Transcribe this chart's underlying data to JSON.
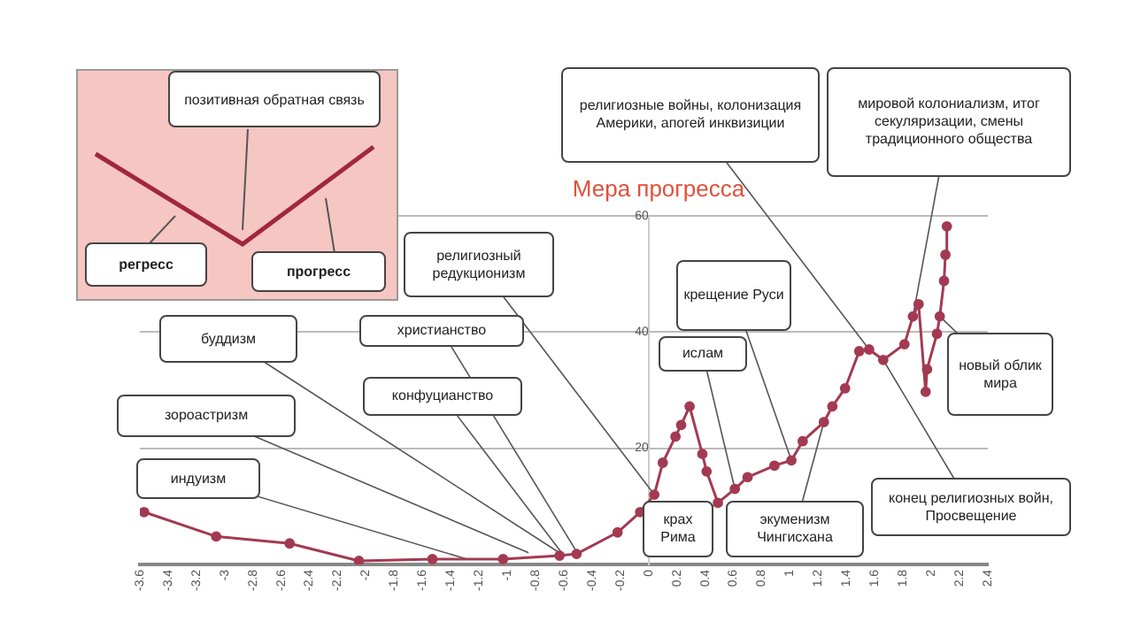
{
  "chart_data": {
    "type": "line",
    "title": "Мера прогресса",
    "x": [
      -3.57,
      -3.06,
      -2.54,
      -2.05,
      -1.53,
      -1.03,
      -0.63,
      -0.51,
      -0.22,
      -0.06,
      0.04,
      0.1,
      0.19,
      0.23,
      0.29,
      0.38,
      0.41,
      0.49,
      0.61,
      0.7,
      0.89,
      1.01,
      1.09,
      1.24,
      1.3,
      1.39,
      1.49,
      1.56,
      1.66,
      1.81,
      1.87,
      1.91,
      1.96,
      1.97,
      2.04,
      2.06,
      2.09,
      2.1,
      2.11
    ],
    "series": [
      {
        "color": "#a33a52",
        "values": [
          9,
          4.8,
          3.6,
          0.6,
          0.9,
          0.9,
          1.5,
          1.8,
          5.5,
          9,
          12,
          17.5,
          22,
          24,
          27.2,
          19,
          16,
          10.6,
          13,
          15,
          17,
          17.9,
          21.2,
          24.5,
          27.2,
          30.3,
          36.7,
          37,
          35.2,
          37.9,
          42.7,
          44.8,
          29.7,
          33.6,
          39.7,
          42.7,
          48.8,
          53.3,
          58.2
        ]
      }
    ],
    "xlim": [
      -3.6,
      2.4
    ],
    "xticks": [
      -3.6,
      -3.4,
      -3.2,
      -3,
      -2.8,
      -2.6,
      -2.4,
      -2.2,
      -2,
      -1.8,
      -1.6,
      -1.4,
      -1.2,
      -1,
      -0.8,
      -0.6,
      -0.4,
      -0.2,
      0,
      0.2,
      0.4,
      0.6,
      0.8,
      1,
      1.2,
      1.4,
      1.6,
      1.8,
      2,
      2.2,
      2.4
    ],
    "ylim": [
      0,
      60
    ],
    "yticks": [
      20,
      40,
      60
    ],
    "grid": "y",
    "marker": "circle",
    "line_style": "solid",
    "legend": false,
    "annotations": [
      "позитивная обратная связь",
      "регресс",
      "прогресс",
      {
        "text": "индуизм",
        "x": -1.3,
        "y": 1
      },
      {
        "text": "зороастризм",
        "x": -0.85,
        "y": 2
      },
      {
        "text": "буддизм",
        "x": -0.6,
        "y": 1.5
      },
      {
        "text": "христианство",
        "x": -0.5,
        "y": 1.8
      },
      {
        "text": "конфуцианство",
        "x": -0.6,
        "y": 1.5
      },
      {
        "text": "религиозный редукционизм",
        "x": 0.04,
        "y": 12
      },
      {
        "text": "ислам",
        "x": 0.61,
        "y": 13
      },
      {
        "text": "крещение Руси",
        "x": 1.01,
        "y": 17.9
      },
      {
        "text": "крах Рима",
        "x": 0.49,
        "y": 10.6
      },
      {
        "text": "экуменизм Чингисхана",
        "x": 1.24,
        "y": 24.5
      },
      {
        "text": "религиозные войны, колонизация Америки, апогей инквизиции",
        "x": 1.56,
        "y": 37
      },
      {
        "text": "мировой колониализм, итог секуляризации, смены традиционного общества",
        "x": 1.87,
        "y": 42.7
      },
      {
        "text": "новый облик мира",
        "x": 2.06,
        "y": 42.7
      },
      {
        "text": "конец религиозных войн, Просвещение",
        "x": 1.66,
        "y": 35.2
      }
    ]
  }
}
